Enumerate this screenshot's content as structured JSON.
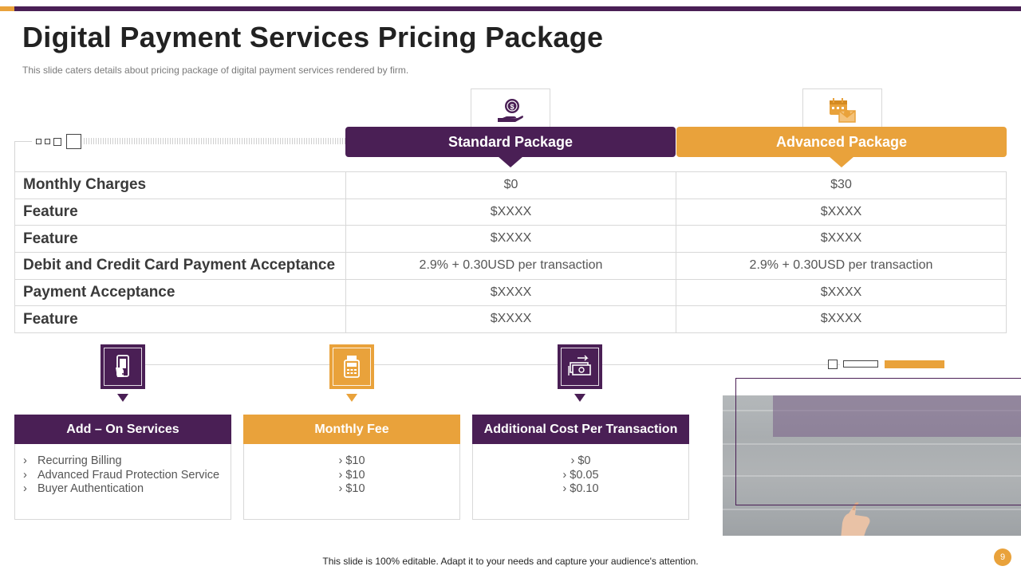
{
  "slide": {
    "title": "Digital Payment Services Pricing Package",
    "subtitle": "This slide caters details about pricing package of digital payment services  rendered  by firm.",
    "footer": "This slide is 100% editable. Adapt it to your needs and capture your audience's attention.",
    "page_number": "9"
  },
  "colors": {
    "primary": "#4a1f55",
    "accent": "#e9a23b"
  },
  "packages": {
    "standard": {
      "label": "Standard Package",
      "icon": "money-hand-icon"
    },
    "advanced": {
      "label": "Advanced Package",
      "icon": "calendar-mail-icon"
    }
  },
  "pricing_rows": [
    {
      "label": "Monthly Charges",
      "standard": "$0",
      "advanced": "$30"
    },
    {
      "label": "Feature",
      "standard": "$XXXX",
      "advanced": "$XXXX"
    },
    {
      "label": "Feature",
      "standard": "$XXXX",
      "advanced": "$XXXX"
    },
    {
      "label": "Debit and Credit Card Payment Acceptance",
      "standard": "2.9% + 0.30USD per transaction",
      "advanced": "2.9% + 0.30USD per transaction"
    },
    {
      "label": "Payment Acceptance",
      "standard": "$XXXX",
      "advanced": "$XXXX"
    },
    {
      "label": "Feature",
      "standard": "$XXXX",
      "advanced": "$XXXX"
    }
  ],
  "cards": [
    {
      "title": "Add – On Services",
      "icon": "mobile-payment-icon",
      "items": [
        "Recurring Billing",
        "Advanced Fraud Protection Service",
        "Buyer Authentication"
      ]
    },
    {
      "title": "Monthly Fee",
      "icon": "card-terminal-icon",
      "items": [
        "› $10",
        "› $10",
        "› $10"
      ]
    },
    {
      "title": "Additional Cost Per Transaction",
      "icon": "cash-transfer-icon",
      "items": [
        "› $0",
        "› $0.05",
        "› $0.10"
      ]
    }
  ],
  "bullet_glyph": "›"
}
